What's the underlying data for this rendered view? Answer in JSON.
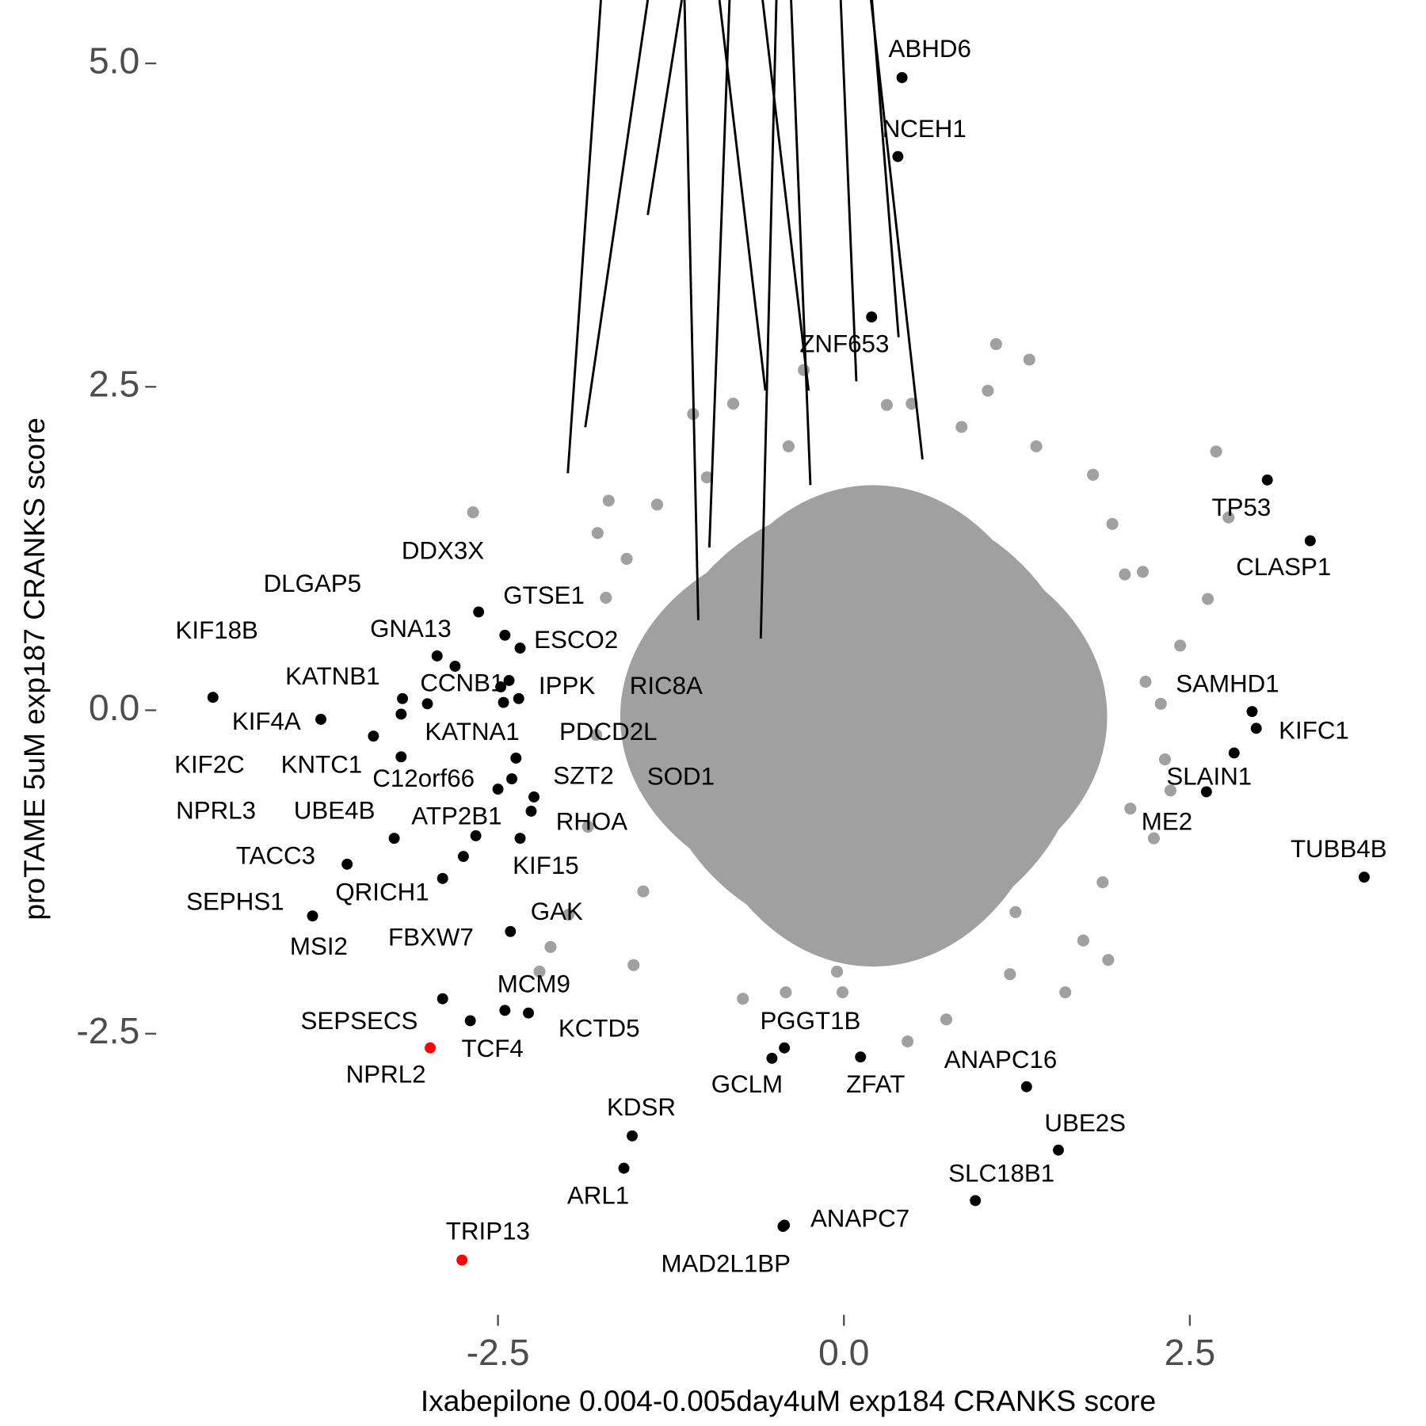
{
  "chart_data": {
    "type": "scatter",
    "xlabel": "Ixabepilone 0.004-0.005day4uM exp184 CRANKS score",
    "ylabel": "proTAME 5uM exp187 CRANKS score",
    "xlim": [
      -4.97,
      4.2
    ],
    "ylim": [
      -4.6,
      5.49
    ],
    "xticks": [
      -2.5,
      {
        "value": 0,
        "label": "0.0"
      },
      2.5
    ],
    "yticks": [
      -2.5,
      {
        "value": 0,
        "label": "0.0"
      },
      2.5,
      {
        "value": 5,
        "label": "5.0"
      }
    ],
    "series": [
      {
        "color": "#a0a0a0",
        "x": [
          -2.68,
          -1.7,
          -1.78,
          -0.8,
          -1.09,
          -0.4,
          -0.29,
          1.1,
          1.34,
          1.04,
          0.31,
          0.49,
          0.85,
          1.39,
          2.69,
          2.78,
          2.63,
          2.43,
          2.18,
          2.29,
          2.32,
          2.36,
          2.24,
          1.91,
          1.73,
          1.24,
          0.74,
          0.46,
          -0.01,
          -0.05,
          -0.42,
          -0.73,
          -2.12,
          -2.2,
          -1.99,
          -1.85,
          -1.52,
          2.03,
          2.16,
          1.8,
          1.94,
          -1.35,
          -1.57,
          -0.99,
          1.6,
          1.2,
          -1.79,
          -1.45,
          1.87,
          2.07,
          -1.72
        ],
        "y": [
          1.53,
          1.62,
          1.37,
          2.37,
          2.29,
          2.04,
          2.63,
          2.83,
          2.71,
          2.47,
          2.36,
          2.37,
          2.19,
          2.04,
          2.0,
          1.49,
          0.86,
          0.5,
          0.22,
          0.05,
          -0.38,
          -0.62,
          -0.99,
          -1.93,
          -1.78,
          -1.56,
          -2.39,
          -2.56,
          -2.18,
          -2.02,
          -2.18,
          -2.23,
          -1.83,
          -2.02,
          -1.58,
          -0.9,
          -1.97,
          1.05,
          1.07,
          1.82,
          1.44,
          1.59,
          1.17,
          1.8,
          -2.18,
          -2.04,
          -0.19,
          -1.4,
          -1.33,
          -0.76,
          0.87
        ]
      },
      {
        "color": "#000000",
        "labels": [
          "ABHD6",
          "NCEH1",
          "ZNF653",
          "TP53",
          "CLASP1",
          "SAMHD1",
          "KIFC1",
          "SLAIN1",
          "ME2",
          "TUBB4B",
          "ANAPC16",
          "UBE2S",
          "SLC18B1",
          "ANAPC7",
          "MAD2L1BP",
          "ZFAT",
          "PGGT1B",
          "GCLM",
          "KDSR",
          "ARL1",
          "TCF4",
          "SEPSECS",
          "MCM9",
          "KCTD5",
          "GAK",
          "MSI2",
          "QRICH1",
          "FBXW7",
          "SEPHS1",
          "TACC3",
          "ATP2B1",
          "KIF15",
          "RHOA",
          "SZT2",
          "UBE4B",
          "C12orf66",
          "SOD1",
          "NPRL3",
          "KNTC1",
          "KIF2C",
          "KIF18B",
          "KIF4A",
          "KATNB1",
          "GNA13",
          "DLGAP5",
          "DDX3X",
          "GTSE1",
          "ESCO2",
          "CCNB1",
          "IPPK",
          "RIC8A",
          "PDCD2L",
          "KATNA1"
        ],
        "x": [
          0.42,
          0.39,
          0.2,
          3.06,
          3.37,
          2.95,
          2.98,
          2.82,
          2.62,
          3.76,
          1.32,
          1.55,
          0.95,
          -0.43,
          -0.44,
          0.12,
          -0.43,
          -0.52,
          -1.53,
          -1.59,
          -2.7,
          -2.9,
          -2.45,
          -2.28,
          -2.41,
          -3.84,
          -2.9,
          -2.75,
          -3.59,
          -3.25,
          -2.66,
          -2.34,
          -2.26,
          -2.24,
          -2.5,
          -2.4,
          -2.37,
          -3.2,
          -3.4,
          -3.2,
          -4.56,
          -3.78,
          -3.19,
          -2.81,
          -2.94,
          -2.64,
          -2.45,
          -2.34,
          -2.42,
          -2.48,
          -2.35,
          -2.46,
          -3.01
        ],
        "y": [
          4.89,
          4.28,
          3.04,
          1.78,
          1.31,
          -0.01,
          -0.14,
          -0.33,
          -0.63,
          -1.29,
          -2.91,
          -3.4,
          -3.79,
          -3.98,
          -3.99,
          -2.68,
          -2.61,
          -2.69,
          -3.29,
          -3.54,
          -2.4,
          -2.23,
          -2.32,
          -2.34,
          -1.71,
          -1.59,
          -1.3,
          -1.13,
          -1.19,
          -0.99,
          -0.97,
          -0.99,
          -0.78,
          -0.67,
          -0.61,
          -0.53,
          -0.37,
          -0.36,
          -0.2,
          -0.03,
          0.1,
          -0.07,
          0.09,
          0.34,
          0.42,
          0.76,
          0.58,
          0.48,
          0.23,
          0.18,
          0.09,
          0.06,
          0.05
        ]
      },
      {
        "color": "#ff0000",
        "labels": [
          "TRIP13",
          "NPRL2"
        ],
        "x": [
          -2.76,
          -2.99
        ],
        "y": [
          -4.25,
          -2.61
        ]
      }
    ]
  }
}
